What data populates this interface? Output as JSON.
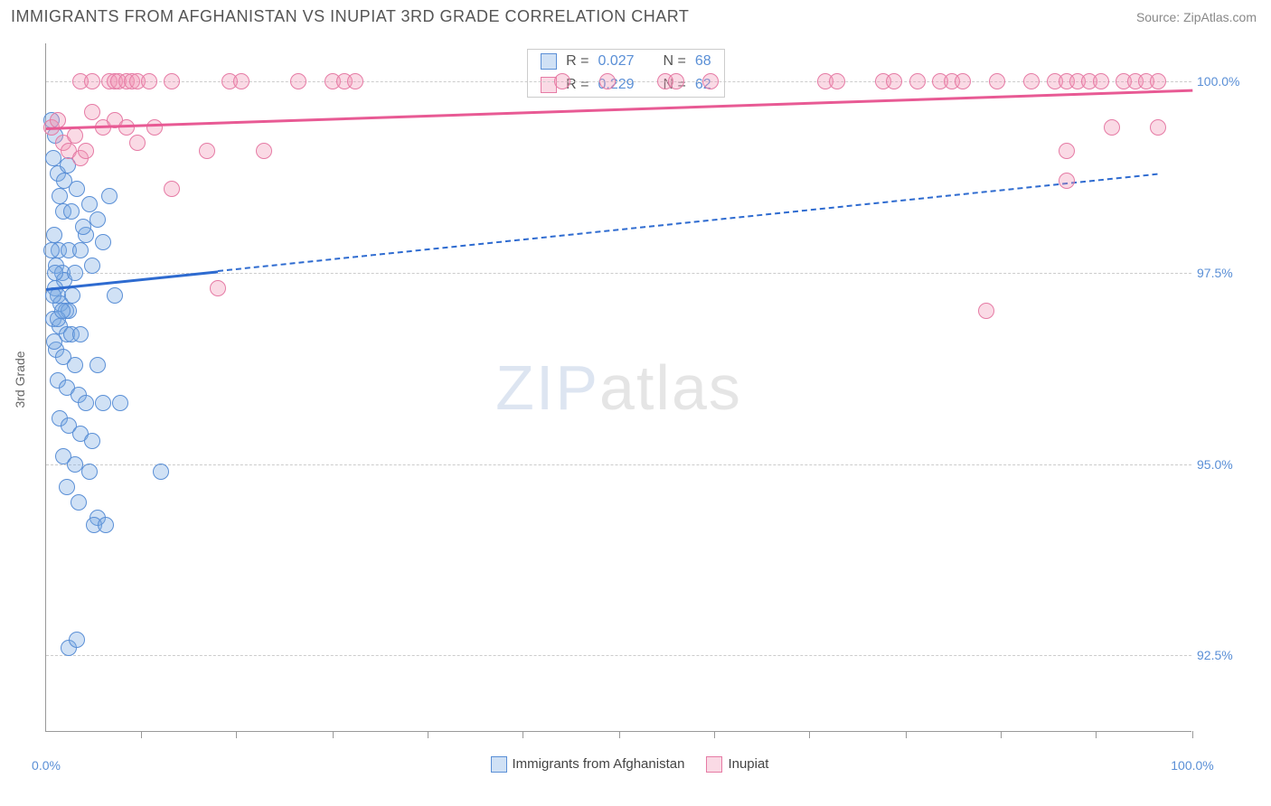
{
  "header": {
    "title": "IMMIGRANTS FROM AFGHANISTAN VS INUPIAT 3RD GRADE CORRELATION CHART",
    "source_label": "Source:",
    "source_name": "ZipAtlas.com"
  },
  "chart": {
    "type": "scatter",
    "background_color": "#ffffff",
    "grid_color": "#cccccc",
    "axis_color": "#999999",
    "label_color": "#5a8fd6",
    "ylabel": "3rd Grade",
    "ylabel_fontsize": 14,
    "xlim": [
      0,
      100
    ],
    "ylim": [
      91.5,
      100.5
    ],
    "yticks": [
      {
        "v": 92.5,
        "label": "92.5%"
      },
      {
        "v": 95.0,
        "label": "95.0%"
      },
      {
        "v": 97.5,
        "label": "97.5%"
      },
      {
        "v": 100.0,
        "label": "100.0%"
      }
    ],
    "xticks_minor": [
      8.3,
      16.6,
      25,
      33.3,
      41.6,
      50,
      58.3,
      66.6,
      75,
      83.3,
      91.6,
      100
    ],
    "xaxis_labels": [
      {
        "v": 0,
        "label": "0.0%"
      },
      {
        "v": 100,
        "label": "100.0%"
      }
    ],
    "watermark": {
      "part1": "ZIP",
      "part2": "atlas"
    },
    "series": [
      {
        "name": "Immigrants from Afghanistan",
        "marker_fill": "rgba(120,170,225,0.35)",
        "marker_stroke": "#5a8fd6",
        "line_color": "#2e6bd0",
        "marker_size": 18,
        "trend": {
          "x1": 0,
          "y1": 97.3,
          "x2_solid": 15,
          "x2": 97,
          "y2": 98.8
        },
        "points": [
          [
            0.5,
            99.5
          ],
          [
            0.8,
            99.3
          ],
          [
            0.6,
            99.0
          ],
          [
            1.0,
            98.8
          ],
          [
            1.2,
            98.5
          ],
          [
            1.5,
            98.3
          ],
          [
            0.7,
            98.0
          ],
          [
            1.1,
            97.8
          ],
          [
            0.9,
            97.6
          ],
          [
            1.4,
            97.5
          ],
          [
            1.6,
            97.4
          ],
          [
            0.8,
            97.3
          ],
          [
            1.0,
            97.2
          ],
          [
            1.3,
            97.1
          ],
          [
            1.7,
            97.0
          ],
          [
            2.0,
            97.0
          ],
          [
            0.6,
            96.9
          ],
          [
            1.2,
            96.8
          ],
          [
            1.8,
            96.7
          ],
          [
            2.2,
            96.7
          ],
          [
            3.0,
            96.7
          ],
          [
            0.9,
            96.5
          ],
          [
            1.5,
            96.4
          ],
          [
            2.5,
            96.3
          ],
          [
            4.5,
            96.3
          ],
          [
            1.0,
            96.1
          ],
          [
            1.8,
            96.0
          ],
          [
            2.8,
            95.9
          ],
          [
            3.5,
            95.8
          ],
          [
            5.0,
            95.8
          ],
          [
            6.5,
            95.8
          ],
          [
            1.2,
            95.6
          ],
          [
            2.0,
            95.5
          ],
          [
            3.0,
            95.4
          ],
          [
            4.0,
            95.3
          ],
          [
            1.5,
            95.1
          ],
          [
            2.5,
            95.0
          ],
          [
            3.8,
            94.9
          ],
          [
            10.0,
            94.9
          ],
          [
            1.8,
            94.7
          ],
          [
            2.8,
            94.5
          ],
          [
            4.5,
            94.3
          ],
          [
            2.0,
            97.8
          ],
          [
            2.5,
            97.5
          ],
          [
            3.0,
            97.8
          ],
          [
            3.5,
            98.0
          ],
          [
            4.0,
            97.6
          ],
          [
            4.5,
            98.2
          ],
          [
            5.0,
            97.9
          ],
          [
            5.5,
            98.5
          ],
          [
            6.0,
            97.2
          ],
          [
            2.2,
            98.3
          ],
          [
            2.7,
            98.6
          ],
          [
            3.2,
            98.1
          ],
          [
            3.8,
            98.4
          ],
          [
            0.5,
            97.8
          ],
          [
            0.8,
            97.5
          ],
          [
            0.6,
            97.2
          ],
          [
            1.0,
            96.9
          ],
          [
            0.7,
            96.6
          ],
          [
            1.6,
            98.7
          ],
          [
            1.9,
            98.9
          ],
          [
            2.3,
            97.2
          ],
          [
            1.4,
            97.0
          ],
          [
            4.2,
            94.2
          ],
          [
            5.2,
            94.2
          ],
          [
            2.0,
            92.6
          ],
          [
            2.7,
            92.7
          ]
        ]
      },
      {
        "name": "Inupiat",
        "marker_fill": "rgba(240,150,180,0.35)",
        "marker_stroke": "#e67ba5",
        "line_color": "#e85a94",
        "marker_size": 18,
        "trend": {
          "x1": 0,
          "y1": 99.4,
          "x2_solid": 100,
          "x2": 100,
          "y2": 99.9
        },
        "points": [
          [
            3.0,
            100.0
          ],
          [
            4.0,
            100.0
          ],
          [
            5.5,
            100.0
          ],
          [
            6.0,
            100.0
          ],
          [
            6.3,
            100.0
          ],
          [
            7.0,
            100.0
          ],
          [
            7.5,
            100.0
          ],
          [
            8.0,
            100.0
          ],
          [
            9.0,
            100.0
          ],
          [
            11.0,
            100.0
          ],
          [
            16.0,
            100.0
          ],
          [
            17.0,
            100.0
          ],
          [
            22.0,
            100.0
          ],
          [
            25.0,
            100.0
          ],
          [
            26.0,
            100.0
          ],
          [
            27.0,
            100.0
          ],
          [
            45.0,
            100.0
          ],
          [
            49.0,
            100.0
          ],
          [
            54.0,
            100.0
          ],
          [
            55.0,
            100.0
          ],
          [
            58.0,
            100.0
          ],
          [
            68.0,
            100.0
          ],
          [
            69.0,
            100.0
          ],
          [
            73.0,
            100.0
          ],
          [
            74.0,
            100.0
          ],
          [
            76.0,
            100.0
          ],
          [
            78.0,
            100.0
          ],
          [
            79.0,
            100.0
          ],
          [
            80.0,
            100.0
          ],
          [
            83.0,
            100.0
          ],
          [
            86.0,
            100.0
          ],
          [
            88.0,
            100.0
          ],
          [
            89.0,
            100.0
          ],
          [
            90.0,
            100.0
          ],
          [
            91.0,
            100.0
          ],
          [
            92.0,
            100.0
          ],
          [
            94.0,
            100.0
          ],
          [
            95.0,
            100.0
          ],
          [
            96.0,
            100.0
          ],
          [
            97.0,
            100.0
          ],
          [
            0.5,
            99.4
          ],
          [
            1.0,
            99.5
          ],
          [
            1.5,
            99.2
          ],
          [
            2.0,
            99.1
          ],
          [
            2.5,
            99.3
          ],
          [
            3.0,
            99.0
          ],
          [
            3.5,
            99.1
          ],
          [
            4.0,
            99.6
          ],
          [
            5.0,
            99.4
          ],
          [
            6.0,
            99.5
          ],
          [
            7.0,
            99.4
          ],
          [
            8.0,
            99.2
          ],
          [
            9.5,
            99.4
          ],
          [
            14.0,
            99.1
          ],
          [
            19.0,
            99.1
          ],
          [
            89.0,
            99.1
          ],
          [
            93.0,
            99.4
          ],
          [
            97.0,
            99.4
          ],
          [
            11.0,
            98.6
          ],
          [
            15.0,
            97.3
          ],
          [
            89.0,
            98.7
          ],
          [
            82.0,
            97.0
          ]
        ]
      }
    ],
    "legend_stats": {
      "rows": [
        {
          "swatch_fill": "rgba(120,170,225,0.35)",
          "swatch_stroke": "#5a8fd6",
          "r_label": "R =",
          "r_val": "0.027",
          "n_label": "N =",
          "n_val": "68"
        },
        {
          "swatch_fill": "rgba(240,150,180,0.35)",
          "swatch_stroke": "#e67ba5",
          "r_label": "R =",
          "r_val": "0.229",
          "n_label": "N =",
          "n_val": "62"
        }
      ]
    },
    "bottom_legend": [
      {
        "swatch_fill": "rgba(120,170,225,0.35)",
        "swatch_stroke": "#5a8fd6",
        "label": "Immigrants from Afghanistan"
      },
      {
        "swatch_fill": "rgba(240,150,180,0.35)",
        "swatch_stroke": "#e67ba5",
        "label": "Inupiat"
      }
    ]
  }
}
